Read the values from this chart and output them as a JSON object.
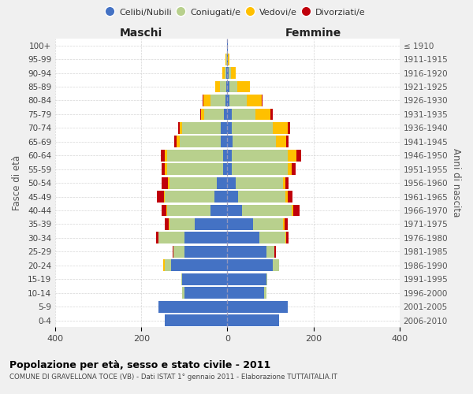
{
  "age_groups": [
    "0-4",
    "5-9",
    "10-14",
    "15-19",
    "20-24",
    "25-29",
    "30-34",
    "35-39",
    "40-44",
    "45-49",
    "50-54",
    "55-59",
    "60-64",
    "65-69",
    "70-74",
    "75-79",
    "80-84",
    "85-89",
    "90-94",
    "95-99",
    "100+"
  ],
  "birth_years": [
    "2006-2010",
    "2001-2005",
    "1996-2000",
    "1991-1995",
    "1986-1990",
    "1981-1985",
    "1976-1980",
    "1971-1975",
    "1966-1970",
    "1961-1965",
    "1956-1960",
    "1951-1955",
    "1946-1950",
    "1941-1945",
    "1936-1940",
    "1931-1935",
    "1926-1930",
    "1921-1925",
    "1916-1920",
    "1911-1915",
    "≤ 1910"
  ],
  "males": {
    "celibi": [
      145,
      160,
      100,
      105,
      130,
      100,
      100,
      75,
      40,
      30,
      25,
      10,
      10,
      15,
      15,
      8,
      5,
      3,
      2,
      1,
      1
    ],
    "coniugati": [
      0,
      0,
      5,
      2,
      15,
      25,
      60,
      60,
      100,
      115,
      110,
      130,
      130,
      95,
      90,
      45,
      35,
      15,
      5,
      2,
      0
    ],
    "vedovi": [
      0,
      0,
      0,
      0,
      5,
      0,
      0,
      2,
      2,
      3,
      3,
      5,
      5,
      8,
      5,
      8,
      15,
      10,
      5,
      2,
      0
    ],
    "divorziati": [
      0,
      0,
      0,
      0,
      0,
      2,
      5,
      8,
      10,
      15,
      15,
      8,
      10,
      5,
      5,
      2,
      2,
      0,
      0,
      0,
      0
    ]
  },
  "females": {
    "nubili": [
      120,
      140,
      85,
      90,
      105,
      90,
      75,
      60,
      35,
      25,
      20,
      10,
      10,
      12,
      10,
      10,
      5,
      5,
      3,
      1,
      1
    ],
    "coniugate": [
      0,
      0,
      5,
      2,
      15,
      20,
      60,
      70,
      115,
      110,
      110,
      130,
      130,
      100,
      95,
      55,
      40,
      18,
      5,
      1,
      0
    ],
    "vedove": [
      0,
      0,
      0,
      0,
      0,
      0,
      2,
      3,
      3,
      5,
      5,
      10,
      20,
      25,
      35,
      35,
      35,
      30,
      12,
      3,
      1
    ],
    "divorziate": [
      0,
      0,
      0,
      0,
      0,
      2,
      5,
      8,
      15,
      12,
      8,
      8,
      12,
      5,
      5,
      5,
      2,
      0,
      0,
      0,
      0
    ]
  },
  "colors": {
    "celibi_nubili": "#4472c4",
    "coniugati_e": "#b8d08d",
    "vedovi_e": "#ffc000",
    "divorziati_e": "#c0000b"
  },
  "xlim": 400,
  "title": "Popolazione per età, sesso e stato civile - 2011",
  "subtitle": "COMUNE DI GRAVELLONA TOCE (VB) - Dati ISTAT 1° gennaio 2011 - Elaborazione TUTTAITALIA.IT",
  "xlabel_left": "Maschi",
  "xlabel_right": "Femmine",
  "ylabel_left": "Fasce di età",
  "ylabel_right": "Anni di nascita",
  "legend_labels": [
    "Celibi/Nubili",
    "Coniugati/e",
    "Vedovi/e",
    "Divorziati/e"
  ],
  "bg_color": "#f0f0f0",
  "plot_bg": "#ffffff",
  "grid_color": "#cccccc"
}
